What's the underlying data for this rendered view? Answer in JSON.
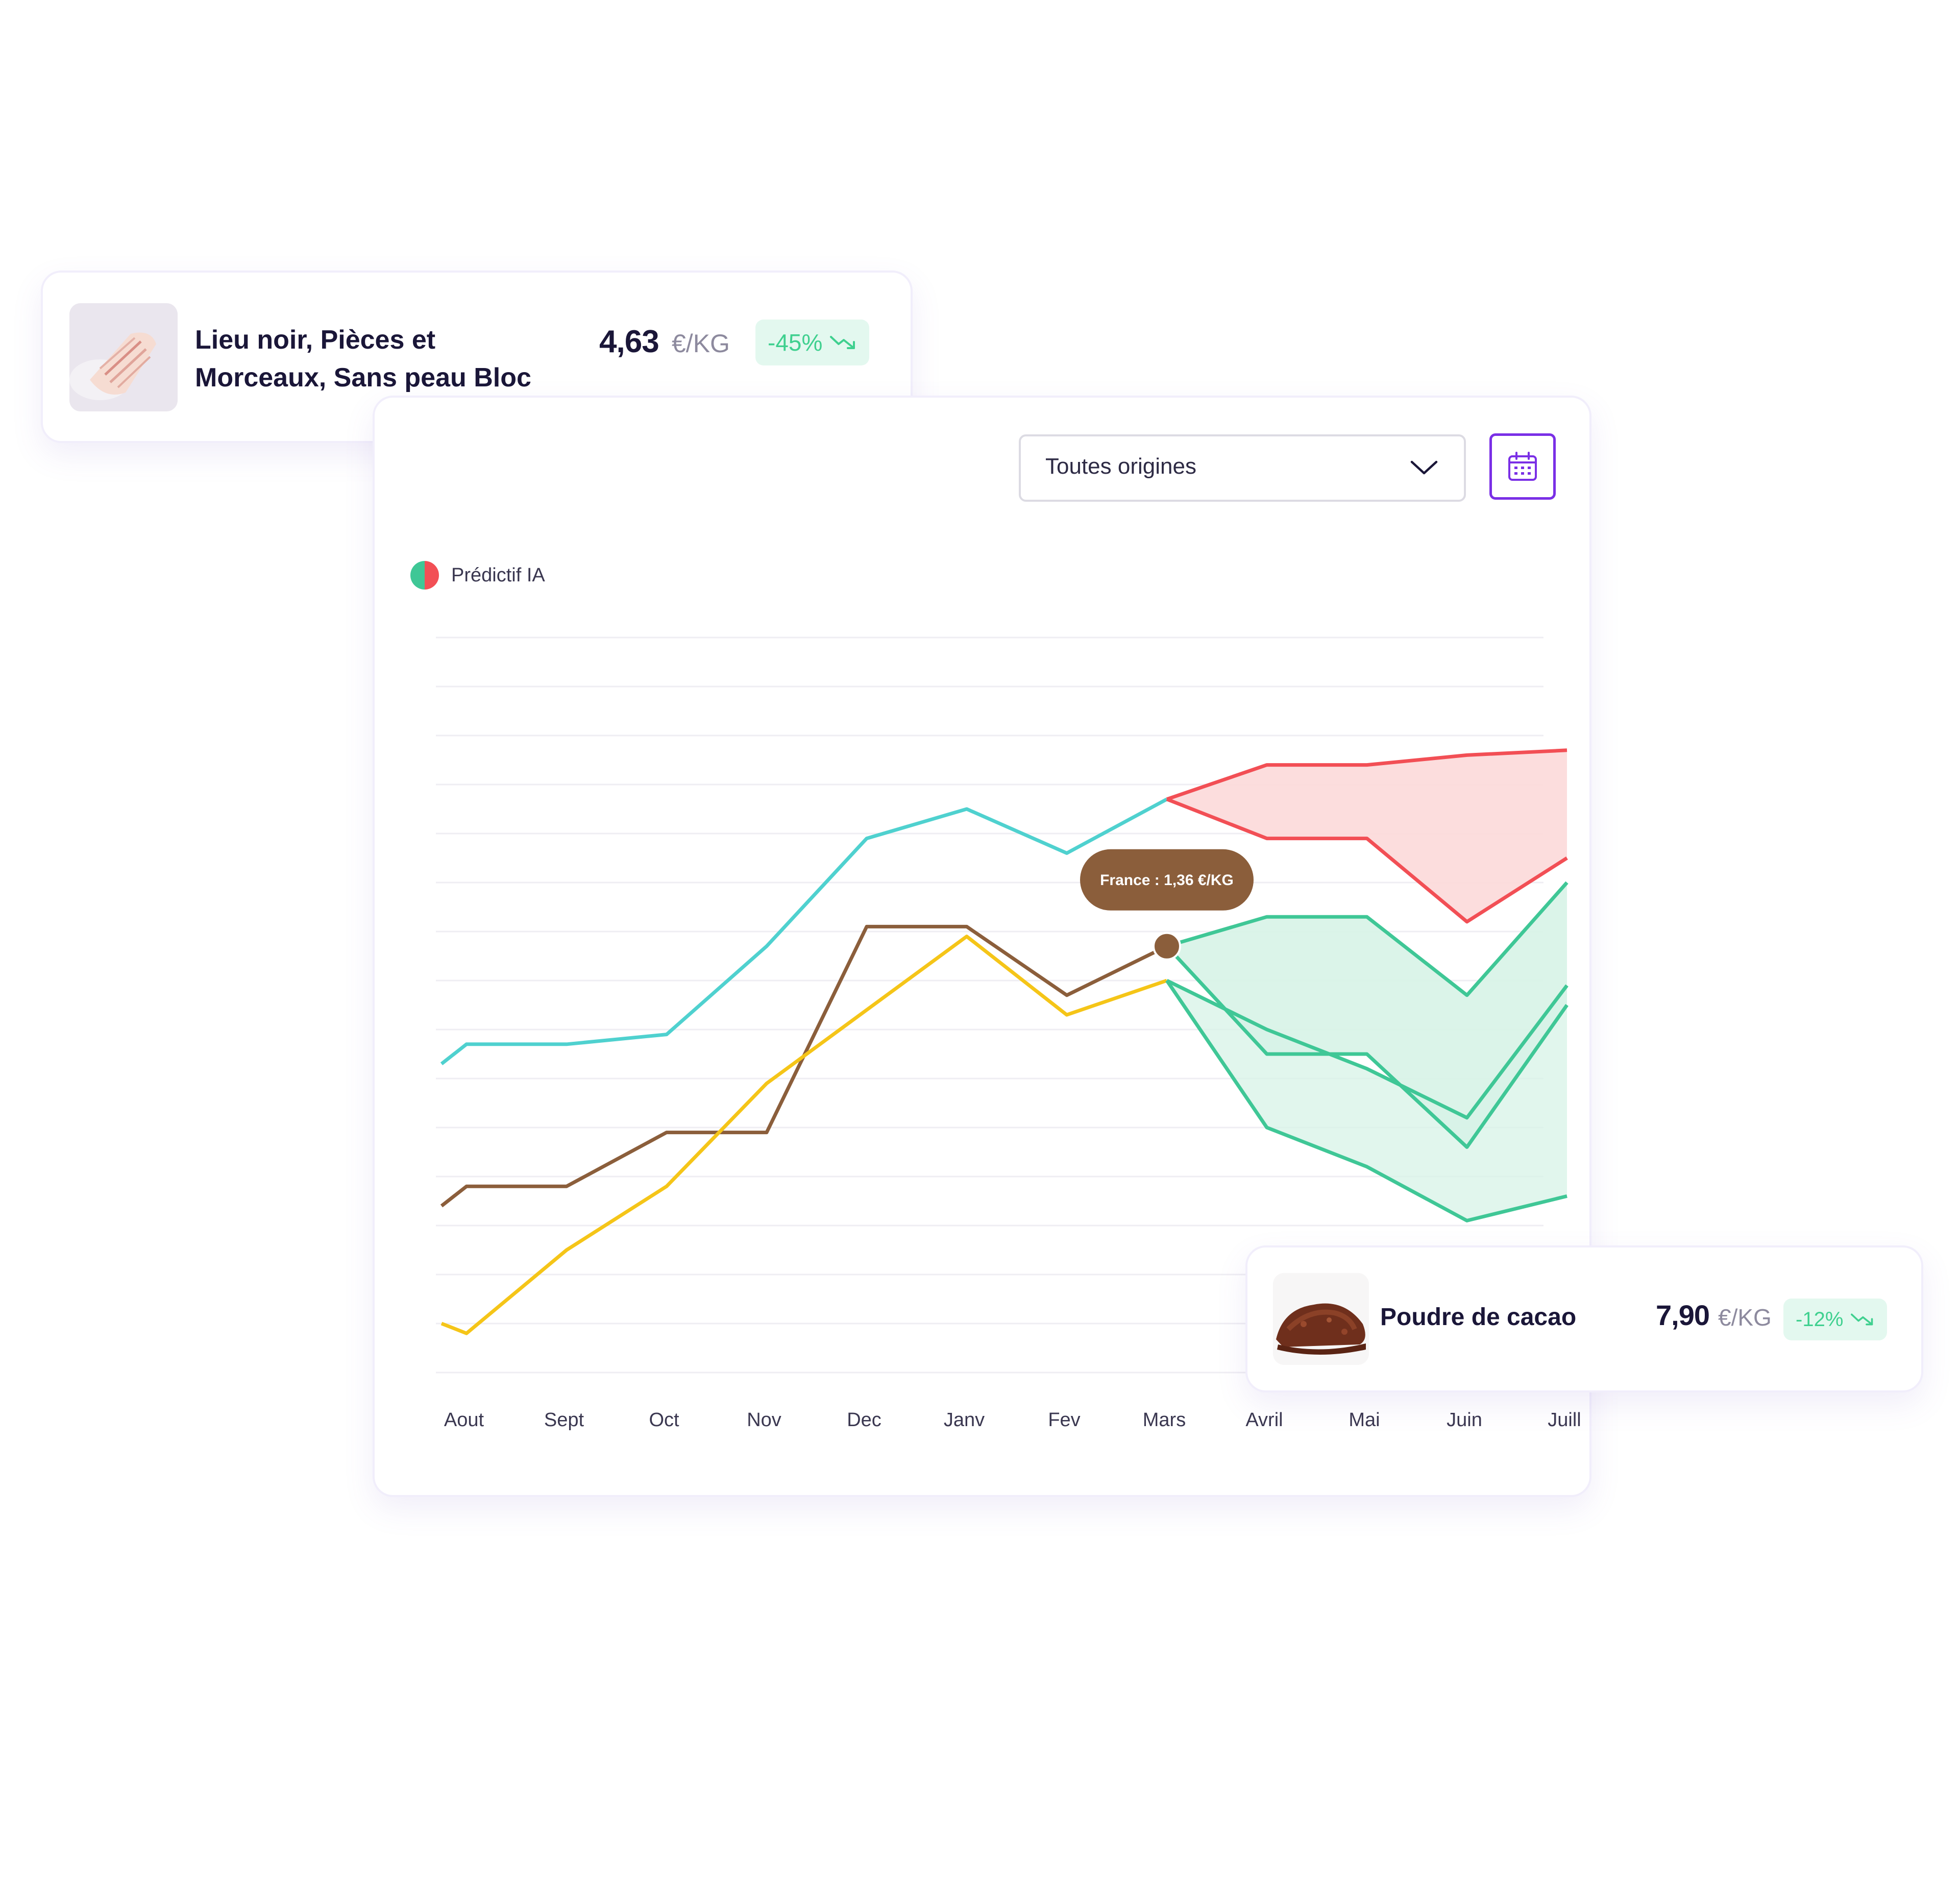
{
  "product_1": {
    "name_line_1": "Lieu noir, Pièces et",
    "name_line_2": "Morceaux, Sans peau Bloc",
    "price": "4,63",
    "unit": "€/KG",
    "change": "-45%",
    "trend_icon": "trend-down-icon",
    "thumb_icon": "fish-fillet-image"
  },
  "product_2": {
    "name": "Poudre de cacao",
    "price": "7,90",
    "unit": "€/KG",
    "change": "-12%",
    "trend_icon": "trend-down-icon",
    "thumb_icon": "cocoa-powder-image"
  },
  "filter": {
    "origin_select_value": "Toutes origines",
    "calendar_icon": "calendar-icon"
  },
  "legend": {
    "label": "Prédictif IA",
    "colors": [
      "#3fc796",
      "#f24f55"
    ]
  },
  "tooltip": {
    "text": "France : 1,36 €/KG"
  },
  "colors": {
    "cyan": "#4fd1cf",
    "brown": "#8b5e3b",
    "yellow": "#f5c518",
    "forecast_up": "#f24f55",
    "forecast_up_fill": "#fcd9d9",
    "forecast_down": "#3fc796",
    "forecast_down_fill": "#d7f3e7",
    "badge_text": "#3fd08f",
    "badge_bg": "#e3f8ef",
    "accent": "#7a2fe6"
  },
  "chart_data": {
    "type": "line",
    "categories": [
      "Aout",
      "Sept",
      "Oct",
      "Nov",
      "Dec",
      "Janv",
      "Fev",
      "Mars",
      "Avril",
      "Mai",
      "Juin",
      "Juill"
    ],
    "grid": true,
    "ylim": [
      0,
      15
    ],
    "series": [
      {
        "color_key": "cyan",
        "x": [
          -0.25,
          0,
          1,
          2,
          3,
          4,
          5,
          6,
          7
        ],
        "values": [
          6.3,
          6.7,
          6.7,
          6.9,
          8.7,
          10.9,
          11.5,
          10.6,
          11.7
        ]
      },
      {
        "color_key": "brown",
        "x": [
          -0.25,
          0,
          1,
          2,
          3,
          4,
          5,
          6,
          7
        ],
        "values": [
          3.4,
          3.8,
          3.8,
          4.9,
          4.9,
          9.1,
          9.1,
          7.7,
          8.7
        ]
      },
      {
        "color_key": "yellow",
        "x": [
          -0.25,
          0,
          1,
          2,
          3,
          4,
          5,
          6,
          7
        ],
        "values": [
          1.0,
          0.8,
          2.5,
          3.8,
          5.9,
          7.4,
          8.9,
          7.3,
          8.0
        ]
      }
    ],
    "forecast_bands": [
      {
        "color_key": "forecast_up",
        "x": [
          7,
          8,
          9,
          10,
          11
        ],
        "upper": [
          11.7,
          12.4,
          12.4,
          12.6,
          12.7
        ],
        "lower": [
          11.7,
          10.9,
          10.9,
          9.2,
          10.5
        ]
      },
      {
        "color_key": "forecast_down",
        "x": [
          7,
          8,
          9,
          10,
          11
        ],
        "upper": [
          8.7,
          9.3,
          9.3,
          7.7,
          10.0
        ],
        "lower": [
          8.7,
          6.5,
          6.5,
          4.6,
          7.5
        ]
      },
      {
        "color_key": "forecast_down",
        "x": [
          7,
          8,
          9,
          10,
          11
        ],
        "upper": [
          8.0,
          7.0,
          6.2,
          5.2,
          7.9
        ],
        "lower": [
          8.0,
          5.0,
          4.2,
          3.1,
          3.6
        ]
      }
    ],
    "highlight": {
      "series_index": 1,
      "x": 7,
      "value": 8.7
    }
  }
}
